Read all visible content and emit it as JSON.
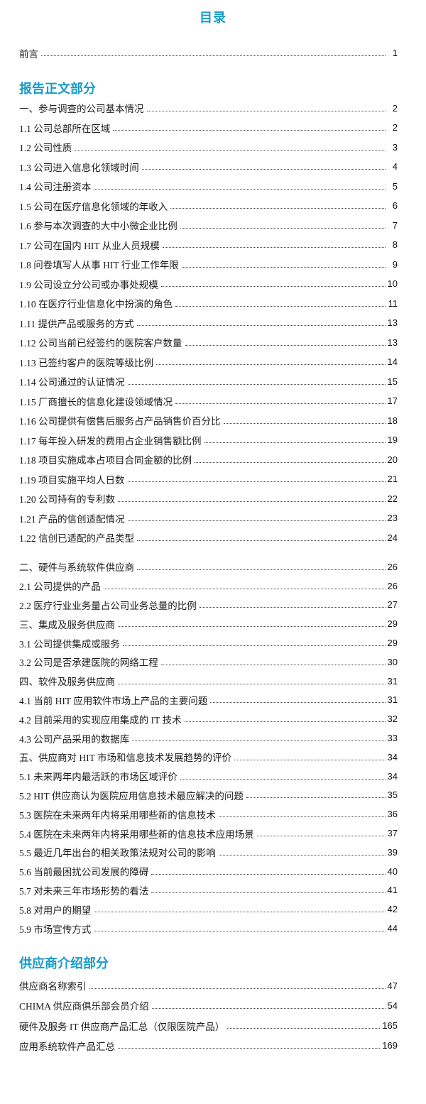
{
  "page": {
    "title": "目录",
    "accent_color": "#1a9bc8",
    "text_color": "#1c1c1c"
  },
  "toc": {
    "groups": [
      {
        "header": null,
        "items": [
          {
            "label": "前言",
            "page": "1"
          }
        ]
      },
      {
        "header": "报告正文部分",
        "items": [
          {
            "label": "一、参与调查的公司基本情况",
            "page": "2"
          },
          {
            "label": "1.1 公司总部所在区域",
            "page": "2"
          },
          {
            "label": "1.2 公司性质",
            "page": "3"
          },
          {
            "label": "1.3 公司进入信息化领域时间",
            "page": "4"
          },
          {
            "label": "1.4 公司注册资本",
            "page": "5"
          },
          {
            "label": "1.5 公司在医疗信息化领域的年收入",
            "page": "6"
          },
          {
            "label": "1.6 参与本次调查的大中小微企业比例",
            "page": "7"
          },
          {
            "label": "1.7 公司在国内 HIT 从业人员规模",
            "page": "8"
          },
          {
            "label": "1.8 问卷填写人从事 HIT 行业工作年限",
            "page": "9"
          },
          {
            "label": "1.9 公司设立分公司或办事处规模",
            "page": "10"
          },
          {
            "label": "1.10 在医疗行业信息化中扮演的角色",
            "page": "11"
          },
          {
            "label": "1.11 提供产品或服务的方式",
            "page": "13"
          },
          {
            "label": "1.12 公司当前已经签约的医院客户数量",
            "page": "13"
          },
          {
            "label": "1.13 已签约客户的医院等级比例",
            "page": "14"
          },
          {
            "label": "1.14 公司通过的认证情况",
            "page": "15"
          },
          {
            "label": "1.15 厂商擅长的信息化建设领域情况",
            "page": "17"
          },
          {
            "label": "1.16 公司提供有偿售后服务占产品销售价百分比",
            "page": "18"
          },
          {
            "label": "1.17 每年投入研发的费用占企业销售额比例",
            "page": "19"
          },
          {
            "label": "1.18 项目实施成本占项目合同金额的比例",
            "page": "20"
          },
          {
            "label": "1.19 项目实施平均人日数",
            "page": "21"
          },
          {
            "label": "1.20 公司持有的专利数",
            "page": "22"
          },
          {
            "label": "1.21 产品的信创适配情况",
            "page": "23"
          },
          {
            "label": "1.22 信创已适配的产品类型",
            "page": "24"
          },
          {
            "label": "二、硬件与系统软件供应商",
            "page": "26"
          },
          {
            "label": "2.1 公司提供的产品",
            "page": "26"
          },
          {
            "label": "2.2 医疗行业业务量占公司业务总量的比例",
            "page": "27"
          },
          {
            "label": "三、集成及服务供应商",
            "page": "29"
          },
          {
            "label": "3.1 公司提供集成或服务",
            "page": "29"
          },
          {
            "label": "3.2 公司是否承建医院的网络工程",
            "page": "30"
          },
          {
            "label": "四、软件及服务供应商",
            "page": "31"
          },
          {
            "label": "4.1 当前 HIT 应用软件市场上产品的主要问题",
            "page": "31"
          },
          {
            "label": "4.2 目前采用的实现应用集成的 IT 技术",
            "page": "32"
          },
          {
            "label": "4.3 公司产品采用的数据库",
            "page": "33"
          },
          {
            "label": "五、供应商对 HIT 市场和信息技术发展趋势的评价",
            "page": "34"
          },
          {
            "label": "5.1 未来两年内最活跃的市场区域评价",
            "page": "34"
          },
          {
            "label": "5.2 HIT 供应商认为医院应用信息技术最应解决的问题",
            "page": "35"
          },
          {
            "label": "5.3 医院在未来两年内将采用哪些新的信息技术",
            "page": "36"
          },
          {
            "label": "5.4 医院在未来两年内将采用哪些新的信息技术应用场景",
            "page": "37"
          },
          {
            "label": "5.5 最近几年出台的相关政策法规对公司的影响",
            "page": "39"
          },
          {
            "label": "5.6 当前最困扰公司发展的障碍",
            "page": "40"
          },
          {
            "label": "5.7 对未来三年市场形势的看法",
            "page": "41"
          },
          {
            "label": "5.8 对用户的期望",
            "page": "42"
          },
          {
            "label": "5.9 市场宣传方式",
            "page": "44"
          }
        ]
      },
      {
        "header": "供应商介绍部分",
        "items": [
          {
            "label": "供应商名称索引",
            "page": "47"
          },
          {
            "label": "CHIMA 供应商俱乐部会员介绍",
            "page": "54"
          },
          {
            "label": "硬件及服务 IT 供应商产品汇总（仅限医院产品）",
            "page": "165"
          },
          {
            "label": "应用系统软件产品汇总",
            "page": "169"
          }
        ]
      }
    ]
  }
}
